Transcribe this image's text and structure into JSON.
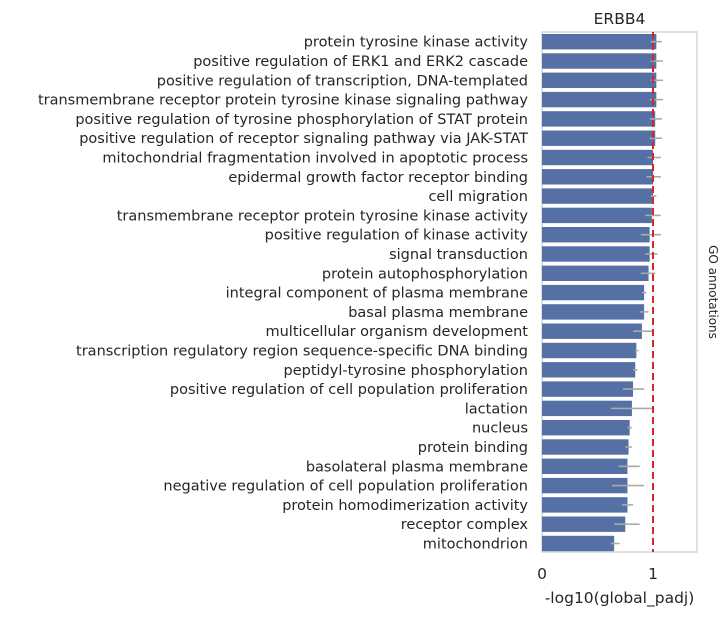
{
  "chart_data": {
    "type": "bar",
    "orientation": "horizontal",
    "title": "ERBB4",
    "xlabel": "-log10(global_padj)",
    "ylabel": "GO annotations",
    "xlim": [
      0,
      1.4
    ],
    "xticks": [
      "0",
      "1"
    ],
    "xtick_values": [
      0,
      1
    ],
    "reference_line": {
      "x": 1,
      "color": "#d62728",
      "style": "dashed"
    },
    "bar_color": "#5470a5",
    "error_color": "#aaaaaa",
    "grid": false,
    "categories": [
      "protein tyrosine kinase activity",
      "positive regulation of ERK1 and ERK2 cascade",
      "positive regulation of transcription, DNA-templated",
      "transmembrane receptor protein tyrosine kinase signaling pathway",
      "positive regulation of tyrosine phosphorylation of STAT protein",
      "positive regulation of receptor signaling pathway via JAK-STAT",
      "mitochondrial fragmentation involved in apoptotic process",
      "epidermal growth factor receptor binding",
      "cell migration",
      "transmembrane receptor protein tyrosine kinase activity",
      "positive regulation of kinase activity",
      "signal transduction",
      "protein autophosphorylation",
      "integral component of plasma membrane",
      "basal plasma membrane",
      "multicellular organism development",
      "transcription regulatory region sequence-specific DNA binding",
      "peptidyl-tyrosine phosphorylation",
      "positive regulation of cell population proliferation",
      "lactation",
      "nucleus",
      "protein binding",
      "basolateral plasma membrane",
      "negative regulation of cell population proliferation",
      "protein homodimerization activity",
      "receptor complex",
      "mitochondrion"
    ],
    "values": [
      1.03,
      1.03,
      1.03,
      1.03,
      1.02,
      1.02,
      1.0,
      1.0,
      1.0,
      0.99,
      0.97,
      0.97,
      0.96,
      0.92,
      0.92,
      0.9,
      0.85,
      0.84,
      0.82,
      0.81,
      0.79,
      0.78,
      0.77,
      0.77,
      0.77,
      0.75,
      0.65
    ],
    "errors": [
      [
        0.98,
        1.08
      ],
      [
        0.98,
        1.09
      ],
      [
        0.98,
        1.09
      ],
      [
        0.97,
        1.09
      ],
      [
        0.97,
        1.08
      ],
      [
        0.97,
        1.08
      ],
      [
        0.95,
        1.07
      ],
      [
        0.94,
        1.07
      ],
      [
        0.98,
        1.03
      ],
      [
        0.93,
        1.07
      ],
      [
        0.89,
        1.07
      ],
      [
        0.93,
        1.04
      ],
      [
        0.89,
        1.02
      ],
      [
        0.9,
        0.94
      ],
      [
        0.88,
        0.96
      ],
      [
        0.82,
        1.01
      ],
      [
        0.84,
        0.87
      ],
      [
        0.82,
        0.86
      ],
      [
        0.73,
        0.92
      ],
      [
        0.62,
        1.0
      ],
      [
        0.77,
        0.81
      ],
      [
        0.75,
        0.81
      ],
      [
        0.69,
        0.88
      ],
      [
        0.63,
        0.92
      ],
      [
        0.72,
        0.82
      ],
      [
        0.65,
        0.88
      ],
      [
        0.62,
        0.7
      ]
    ]
  }
}
